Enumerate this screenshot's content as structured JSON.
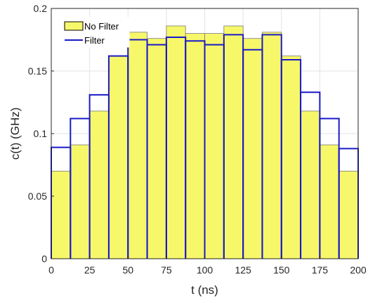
{
  "chart_data": {
    "type": "bar",
    "xlabel": "t (ns)",
    "ylabel": "c(t) (GHz)",
    "xlim": [
      0,
      200
    ],
    "ylim": [
      0,
      0.2
    ],
    "xticks": [
      0,
      25,
      50,
      75,
      100,
      125,
      150,
      175,
      200
    ],
    "yticks": [
      0,
      0.05,
      0.1,
      0.15,
      0.2
    ],
    "ytick_labels": [
      "0",
      "0.05",
      "0.1",
      "0.15",
      "0.2"
    ],
    "grid": true,
    "legend_position": "top-left",
    "bin_edges": [
      0,
      12.5,
      25,
      37.5,
      50,
      62.5,
      75,
      87.5,
      100,
      112.5,
      125,
      137.5,
      150,
      162.5,
      175,
      187.5,
      200
    ],
    "series": [
      {
        "name": "No Filter",
        "style": "filled",
        "fill_color": "#f7f76a",
        "edge_color": "#7a7a7a",
        "values": [
          0.07,
          0.091,
          0.118,
          0.162,
          0.181,
          0.176,
          0.186,
          0.18,
          0.18,
          0.186,
          0.176,
          0.181,
          0.162,
          0.118,
          0.091,
          0.07
        ]
      },
      {
        "name": "Filter",
        "style": "outline",
        "edge_color": "#1a1ac8",
        "values": [
          0.089,
          0.112,
          0.131,
          0.162,
          0.175,
          0.171,
          0.177,
          0.174,
          0.171,
          0.179,
          0.167,
          0.179,
          0.159,
          0.133,
          0.112,
          0.088
        ]
      }
    ]
  }
}
